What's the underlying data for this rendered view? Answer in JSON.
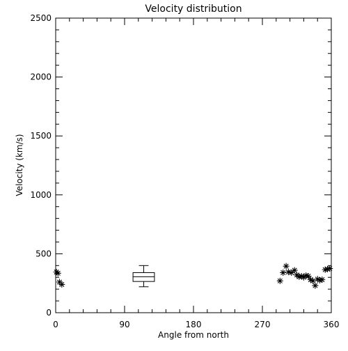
{
  "chart_data": {
    "type": "scatter",
    "title": "Velocity distribution",
    "xlabel": "Angle from north",
    "ylabel": "Velocity (km/s)",
    "xlim": [
      0,
      360
    ],
    "ylim": [
      0,
      2500
    ],
    "xticks": [
      0,
      90,
      180,
      270,
      360
    ],
    "yticks": [
      0,
      500,
      1000,
      1500,
      2000,
      2500
    ],
    "grid": false,
    "marker": "asterisk",
    "points": [
      {
        "x": 1,
        "y": 345
      },
      {
        "x": 3,
        "y": 335
      },
      {
        "x": 5,
        "y": 260
      },
      {
        "x": 8,
        "y": 240
      },
      {
        "x": 293,
        "y": 270
      },
      {
        "x": 297,
        "y": 340
      },
      {
        "x": 301,
        "y": 395
      },
      {
        "x": 304,
        "y": 345
      },
      {
        "x": 308,
        "y": 340
      },
      {
        "x": 312,
        "y": 360
      },
      {
        "x": 315,
        "y": 320
      },
      {
        "x": 318,
        "y": 305
      },
      {
        "x": 321,
        "y": 310
      },
      {
        "x": 324,
        "y": 300
      },
      {
        "x": 327,
        "y": 315
      },
      {
        "x": 330,
        "y": 310
      },
      {
        "x": 333,
        "y": 280
      },
      {
        "x": 336,
        "y": 270
      },
      {
        "x": 339,
        "y": 230
      },
      {
        "x": 342,
        "y": 285
      },
      {
        "x": 345,
        "y": 275
      },
      {
        "x": 348,
        "y": 280
      },
      {
        "x": 352,
        "y": 365
      },
      {
        "x": 355,
        "y": 370
      },
      {
        "x": 358,
        "y": 375
      }
    ],
    "boxplot": {
      "x": 115,
      "x_halfwidth": 14,
      "whisker_low": 220,
      "q1": 265,
      "median": 305,
      "q3": 340,
      "whisker_high": 400
    }
  }
}
